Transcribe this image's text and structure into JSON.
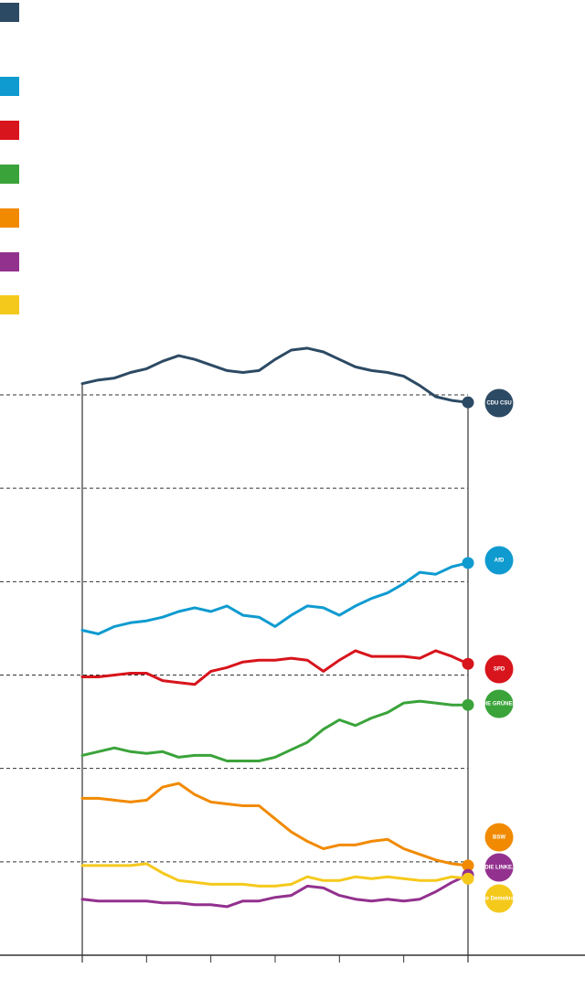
{
  "chart_data": {
    "type": "line",
    "x": [
      0,
      0.25,
      0.5,
      0.75,
      1,
      1.25,
      1.5,
      1.75,
      2,
      2.25,
      2.5,
      2.75,
      3,
      3.25,
      3.5,
      3.75,
      4,
      4.25,
      4.5,
      4.75,
      5,
      5.25,
      5.5,
      5.75,
      6
    ],
    "xlim": [
      0,
      6
    ],
    "xticks": [
      0,
      1,
      2,
      3,
      4,
      5,
      6
    ],
    "ylim": [
      0,
      30
    ],
    "yticks": [
      0,
      5,
      10,
      15,
      20,
      25,
      30
    ],
    "grid": true,
    "series": [
      {
        "name": "CDU CSU",
        "color": "#2d4a64",
        "values": [
          30.6,
          30.8,
          30.9,
          31.2,
          31.4,
          31.8,
          32.1,
          31.9,
          31.6,
          31.3,
          31.2,
          31.3,
          31.9,
          32.4,
          32.5,
          32.3,
          31.9,
          31.5,
          31.3,
          31.2,
          31.0,
          30.5,
          29.9,
          29.7,
          29.6
        ]
      },
      {
        "name": "AfD",
        "color": "#0f9bd0",
        "values": [
          17.4,
          17.2,
          17.6,
          17.8,
          17.9,
          18.1,
          18.4,
          18.6,
          18.4,
          18.7,
          18.2,
          18.1,
          17.6,
          18.2,
          18.7,
          18.6,
          18.2,
          18.7,
          19.1,
          19.4,
          19.9,
          20.5,
          20.4,
          20.8,
          21.0
        ]
      },
      {
        "name": "SPD",
        "color": "#d8141c",
        "values": [
          14.9,
          14.9,
          15.0,
          15.1,
          15.1,
          14.7,
          14.6,
          14.5,
          15.2,
          15.4,
          15.7,
          15.8,
          15.8,
          15.9,
          15.8,
          15.2,
          15.8,
          16.3,
          16.0,
          16.0,
          16.0,
          15.9,
          16.3,
          16.0,
          15.6
        ]
      },
      {
        "name": "DIE GRÜNEN",
        "color": "#3aa33a",
        "values": [
          10.7,
          10.9,
          11.1,
          10.9,
          10.8,
          10.9,
          10.6,
          10.7,
          10.7,
          10.4,
          10.4,
          10.4,
          10.6,
          11.0,
          11.4,
          12.1,
          12.6,
          12.3,
          12.7,
          13.0,
          13.5,
          13.6,
          13.5,
          13.4,
          13.4
        ]
      },
      {
        "name": "BSW",
        "color": "#f18a00",
        "values": [
          8.4,
          8.4,
          8.3,
          8.2,
          8.3,
          9.0,
          9.2,
          8.6,
          8.2,
          8.1,
          8.0,
          8.0,
          7.3,
          6.6,
          6.1,
          5.7,
          5.9,
          5.9,
          6.1,
          6.2,
          5.7,
          5.4,
          5.1,
          4.9,
          4.8
        ]
      },
      {
        "name": "DIE LINKE.",
        "color": "#93318f",
        "values": [
          3.0,
          2.9,
          2.9,
          2.9,
          2.9,
          2.8,
          2.8,
          2.7,
          2.7,
          2.6,
          2.9,
          2.9,
          3.1,
          3.2,
          3.7,
          3.6,
          3.2,
          3.0,
          2.9,
          3.0,
          2.9,
          3.0,
          3.4,
          3.9,
          4.3
        ]
      },
      {
        "name": "Freie Demokraten",
        "color": "#f5c91c",
        "values": [
          4.8,
          4.8,
          4.8,
          4.8,
          4.9,
          4.4,
          4.0,
          3.9,
          3.8,
          3.8,
          3.8,
          3.7,
          3.7,
          3.8,
          4.2,
          4.0,
          4.0,
          4.2,
          4.1,
          4.2,
          4.1,
          4.0,
          4.0,
          4.2,
          4.1
        ]
      }
    ]
  }
}
